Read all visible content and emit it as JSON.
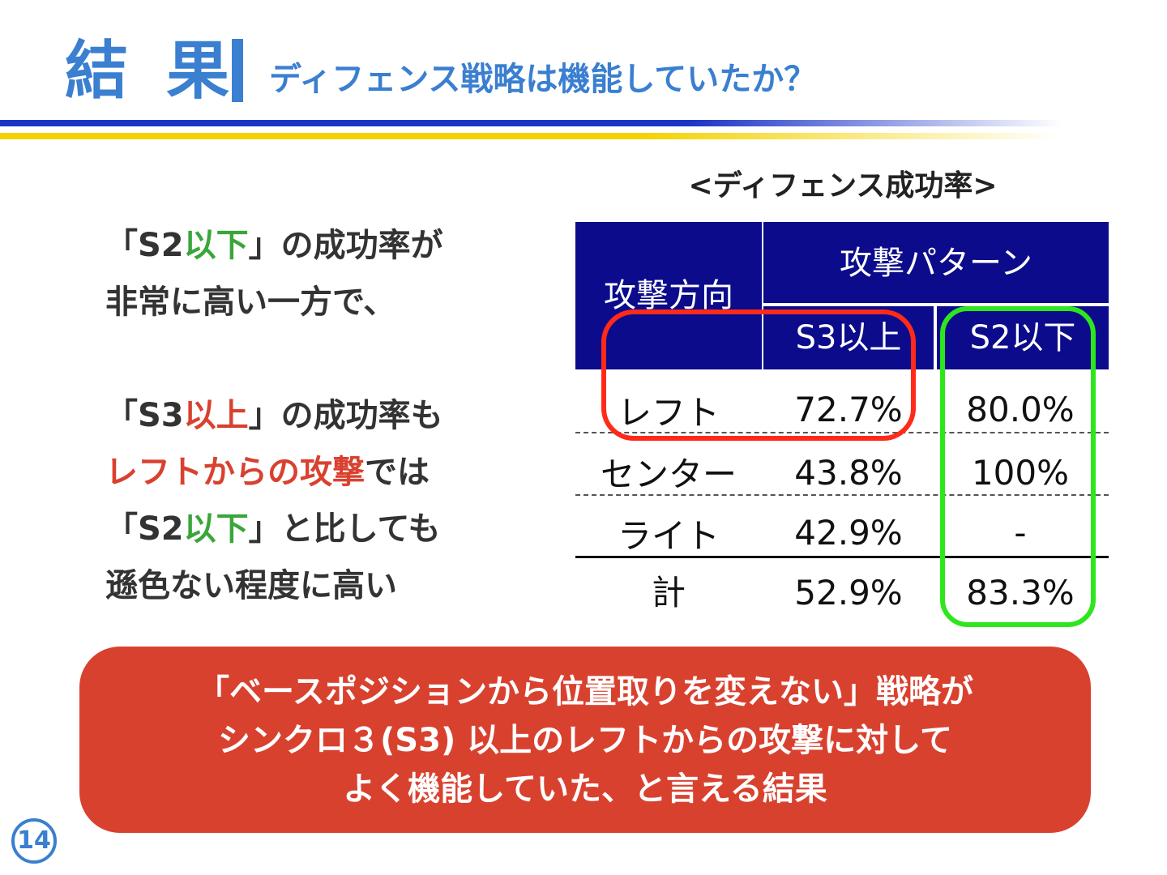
{
  "header": {
    "title": "結 果",
    "subtitle": "ディフェンス戦略は機能していたか？"
  },
  "left_text": {
    "para1": [
      {
        "parts": [
          "「S2",
          "以下",
          "」の成功率が"
        ]
      },
      {
        "text": "非常に高い一方で、"
      }
    ],
    "para2": [
      {
        "parts": [
          "「S3",
          "以上",
          "」の成功率も"
        ]
      },
      {
        "parts": [
          "レフトからの攻撃",
          "では"
        ]
      },
      {
        "parts": [
          "「S2",
          "以下",
          "」と比しても"
        ]
      },
      {
        "text": "遜色ない程度に高い"
      }
    ]
  },
  "table": {
    "title": "<ディフェンス成功率>",
    "row_header": "攻撃方向",
    "group_header": "攻撃パターン",
    "columns": [
      "S3以上",
      "S2以下"
    ],
    "rows": [
      {
        "label": "レフト",
        "values": [
          "72.7%",
          "80.0%"
        ]
      },
      {
        "label": "センター",
        "values": [
          "43.8%",
          "100%"
        ]
      },
      {
        "label": "ライト",
        "values": [
          "42.9%",
          "-"
        ]
      }
    ],
    "total": {
      "label": "計",
      "values": [
        "52.9%",
        "83.3%"
      ]
    }
  },
  "conclusion": {
    "lines": [
      "「ベースポジションから位置取りを変えない」戦略が",
      "シンクロ３(S3) 以上のレフトからの攻撃に対して",
      "よく機能していた、と言える結果"
    ]
  },
  "page_number": "14",
  "colors": {
    "accent_blue": "#3a7fd0",
    "header_navy": "#0b0b8c",
    "highlight_red": "#ff2a1a",
    "highlight_green": "#2ee61c",
    "conclusion_red": "#d9412f",
    "text_green": "#3aa63a"
  }
}
